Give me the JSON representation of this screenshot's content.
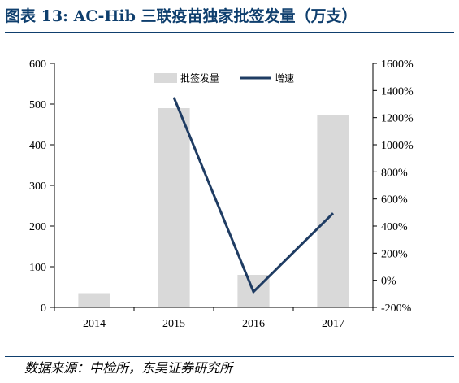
{
  "title": "图表 13:  AC-Hib 三联疫苗独家批签发量（万支）",
  "source": "数据来源：中检所，东吴证券研究所",
  "colors": {
    "bar": "#d9d9d9",
    "line": "#1f3c63",
    "heading": "#0f3f6e"
  },
  "chart_data": {
    "type": "bar",
    "categories": [
      "2014",
      "2015",
      "2016",
      "2017"
    ],
    "series": [
      {
        "name": "批签发量",
        "type": "bar",
        "axis": "left",
        "values": [
          35,
          490,
          80,
          472
        ]
      },
      {
        "name": "增速",
        "type": "line",
        "axis": "right",
        "values": [
          null,
          1350,
          -85,
          495
        ],
        "unit": "%"
      }
    ],
    "ylim": [
      0,
      600
    ],
    "yticks": [
      0,
      100,
      200,
      300,
      400,
      500,
      600
    ],
    "y2lim": [
      -200,
      1600
    ],
    "y2ticks": [
      "-200%",
      "0%",
      "200%",
      "400%",
      "600%",
      "800%",
      "1000%",
      "1200%",
      "1400%",
      "1600%"
    ],
    "legend_position": "top-center",
    "grid": false
  }
}
